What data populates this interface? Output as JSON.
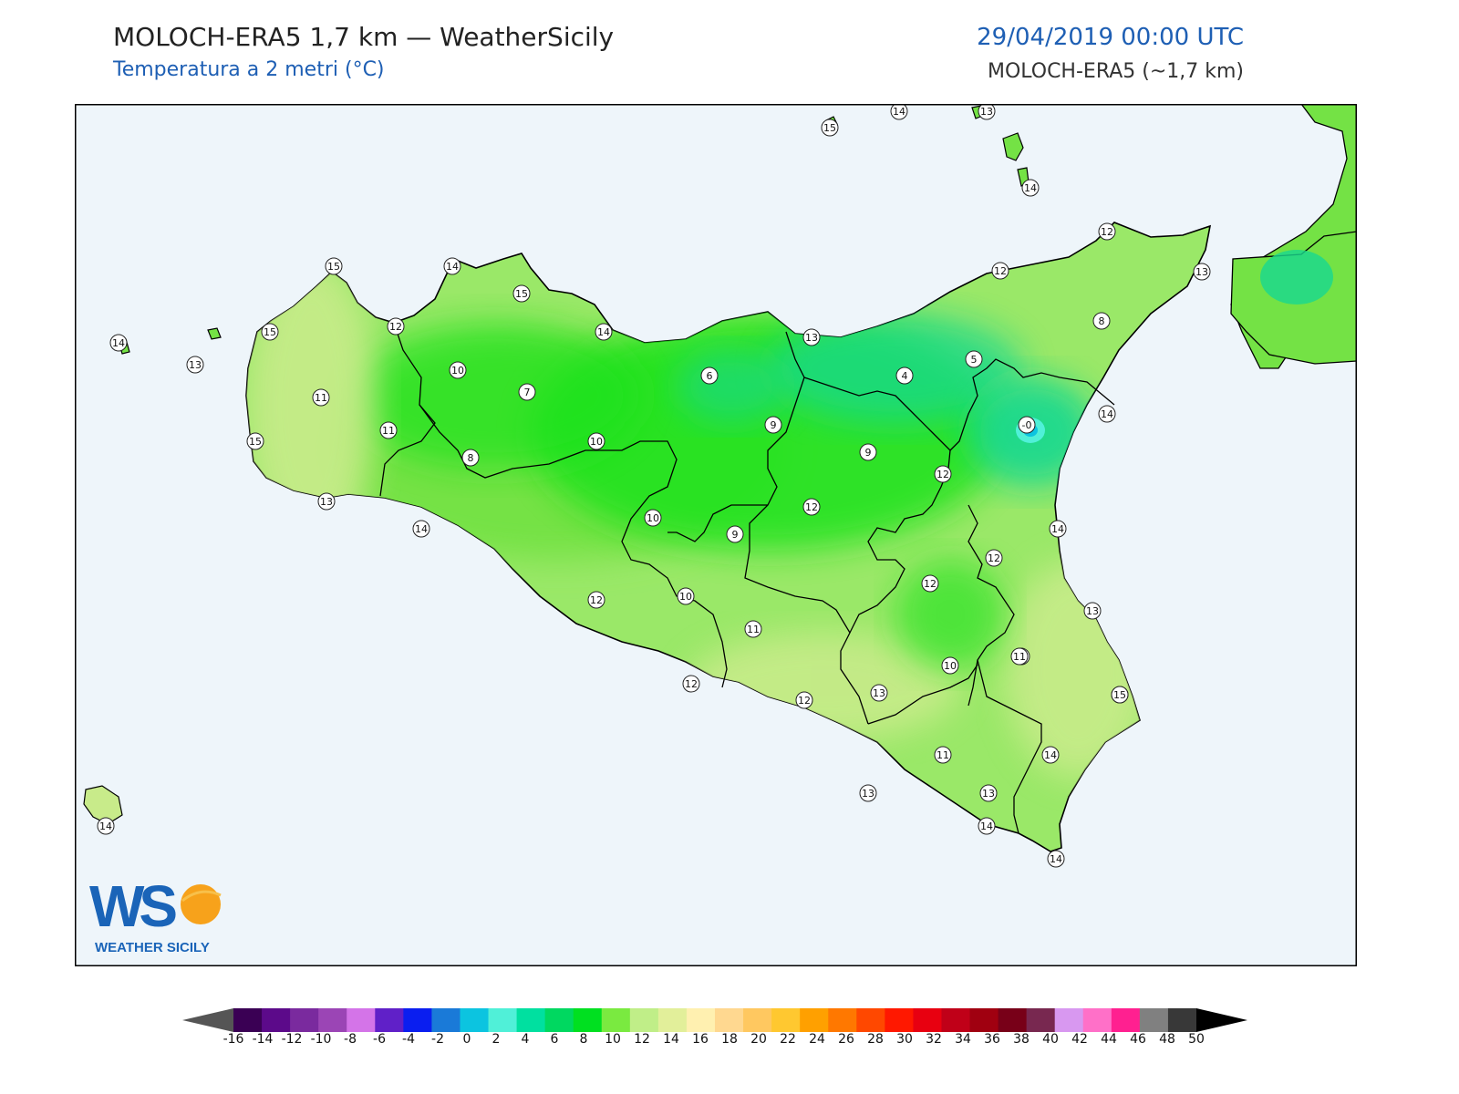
{
  "header": {
    "title": "MOLOCH-ERA5 1,7 km — WeatherSicily",
    "subtitle": "Temperatura a 2 metri (°C)",
    "datetime": "29/04/2019 00:00 UTC",
    "model": "MOLOCH-ERA5 (~1,7 km)"
  },
  "logo": {
    "initials": "WS",
    "brand": "WEATHER SICILY"
  },
  "colors": {
    "sea": "#eef5fa",
    "land_warm": "#c8eb8a",
    "land_mid": "#74e245",
    "land_cool": "#1ee21e",
    "land_cold": "#18d890",
    "border": "#000000"
  },
  "point_values": [
    "15",
    "14",
    "13",
    "14",
    "12",
    "15",
    "14",
    "15",
    "12",
    "14",
    "15",
    "14",
    "13",
    "12",
    "13",
    "14",
    "15",
    "10",
    "7",
    "6",
    "9",
    "4",
    "5",
    "8",
    "13",
    "11",
    "11",
    "10",
    "8",
    "9",
    "-0",
    "15",
    "13",
    "11",
    "12",
    "10",
    "9",
    "12",
    "14",
    "12",
    "13",
    "13",
    "12",
    "10",
    "12",
    "11",
    "11",
    "12",
    "12",
    "10",
    "13",
    "15",
    "14",
    "11",
    "14",
    "13",
    "14",
    "14",
    "14"
  ],
  "colorbar": {
    "ticks": [
      "-16",
      "-14",
      "-12",
      "-10",
      "-8",
      "-6",
      "-4",
      "-2",
      "0",
      "2",
      "4",
      "6",
      "8",
      "10",
      "12",
      "14",
      "16",
      "18",
      "20",
      "22",
      "24",
      "26",
      "28",
      "30",
      "32",
      "34",
      "36",
      "38",
      "40",
      "42",
      "44",
      "46",
      "48",
      "50"
    ],
    "colors": [
      "#3a0054",
      "#5c0a8a",
      "#7a2a9e",
      "#9b45b5",
      "#d474e8",
      "#6020c8",
      "#0a1ef0",
      "#1a7ad8",
      "#0cc4e0",
      "#50f0d8",
      "#00e0a0",
      "#00d860",
      "#00e020",
      "#7aea40",
      "#c0ee88",
      "#e2ef9a",
      "#fff0b0",
      "#ffd890",
      "#ffc860",
      "#ffc830",
      "#ffa000",
      "#ff7800",
      "#ff4800",
      "#ff1800",
      "#e80010",
      "#c00018",
      "#a00010",
      "#780018",
      "#782850",
      "#d898f0",
      "#ff70c8",
      "#ff2090",
      "#808080",
      "#383838"
    ]
  }
}
